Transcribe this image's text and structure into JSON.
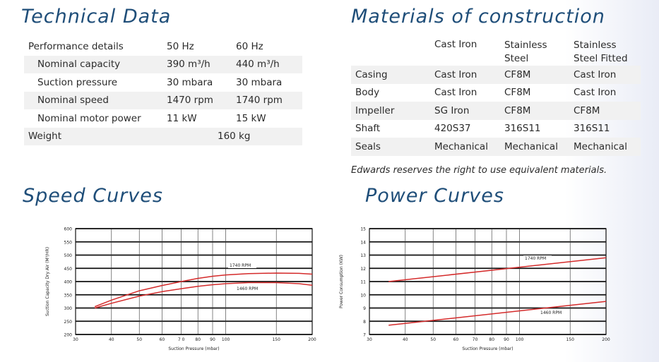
{
  "technical_data": {
    "title": "Technical Data",
    "header": {
      "label": "Performance details",
      "col1": "50 Hz",
      "col2": "60 Hz"
    },
    "rows": [
      {
        "label": "Nominal capacity",
        "v50": "390 m³/h",
        "v60": "440 m³/h"
      },
      {
        "label": "Suction pressure",
        "v50": "30 mbara",
        "v60": "30 mbara"
      },
      {
        "label": "Nominal speed",
        "v50": "1470 rpm",
        "v60": "1740 rpm"
      },
      {
        "label": "Nominal motor power",
        "v50": "11 kW",
        "v60": "15 kW"
      }
    ],
    "weight": {
      "label": "Weight",
      "value": "160 kg"
    }
  },
  "materials": {
    "title": "Materials of construction",
    "headers": [
      [
        "Cast Iron"
      ],
      [
        "Stainless",
        "Steel"
      ],
      [
        "Stainless",
        "Steel Fitted"
      ]
    ],
    "rows": [
      {
        "part": "Casing",
        "values": [
          "Cast Iron",
          "CF8M",
          "Cast Iron"
        ]
      },
      {
        "part": "Body",
        "values": [
          "Cast Iron",
          "CF8M",
          "Cast Iron"
        ]
      },
      {
        "part": "Impeller",
        "values": [
          "SG Iron",
          "CF8M",
          "CF8M"
        ]
      },
      {
        "part": "Shaft",
        "values": [
          "420S37",
          "316S11",
          "316S11"
        ]
      },
      {
        "part": "Seals",
        "values": [
          "Mechanical",
          "Mechanical",
          "Mechanical"
        ]
      }
    ],
    "note": "Edwards reserves the right to use equivalent materials."
  },
  "speed_curves": {
    "title": "Speed Curves"
  },
  "power_curves": {
    "title": "Power Curves"
  },
  "chart_data": [
    {
      "type": "line",
      "xlabel": "Suction Pressure (mbar)",
      "ylabel": "Suction Capacity Dry Air (M³/HR)",
      "x_scale": "log",
      "xlim": [
        30,
        200
      ],
      "ylim": [
        200,
        600
      ],
      "x_ticks": [
        30,
        40,
        50,
        60,
        70,
        80,
        90,
        100,
        150,
        200
      ],
      "x_tick_labels": [
        "30",
        "40",
        "50",
        "60",
        "7 0",
        "80",
        "90",
        "100",
        "150",
        "200"
      ],
      "y_ticks": [
        200,
        250,
        300,
        350,
        400,
        450,
        500,
        550,
        600
      ],
      "grid": true,
      "line_color": "#d42a2a",
      "series": [
        {
          "name": "1740 RPM",
          "x": [
            35,
            40,
            50,
            60,
            70,
            80,
            90,
            100,
            120,
            150,
            180,
            200
          ],
          "y": [
            305,
            330,
            365,
            385,
            400,
            412,
            420,
            425,
            430,
            432,
            431,
            428
          ]
        },
        {
          "name": "1460 RPM",
          "x": [
            35,
            40,
            50,
            60,
            70,
            80,
            90,
            100,
            120,
            150,
            180,
            200
          ],
          "y": [
            300,
            318,
            345,
            362,
            373,
            382,
            388,
            392,
            396,
            396,
            392,
            386
          ]
        }
      ]
    },
    {
      "type": "line",
      "xlabel": "Suction Pressure (mbar)",
      "ylabel": "Power Consumption (KW)",
      "x_scale": "log",
      "xlim": [
        30,
        200
      ],
      "ylim": [
        7,
        15
      ],
      "x_ticks": [
        30,
        40,
        50,
        60,
        70,
        80,
        90,
        100,
        150,
        200
      ],
      "x_tick_labels": [
        "30",
        "40",
        "50",
        "60",
        "70",
        "80",
        "90",
        "100",
        "150",
        "200"
      ],
      "y_ticks": [
        7,
        8,
        9,
        10,
        11,
        12,
        13,
        14,
        15
      ],
      "grid": true,
      "line_color": "#d42a2a",
      "series": [
        {
          "name": "1740 RPM",
          "x": [
            35,
            200
          ],
          "y": [
            11.0,
            12.8
          ]
        },
        {
          "name": "1460 RPM",
          "x": [
            35,
            200
          ],
          "y": [
            7.7,
            9.5
          ]
        }
      ]
    }
  ]
}
